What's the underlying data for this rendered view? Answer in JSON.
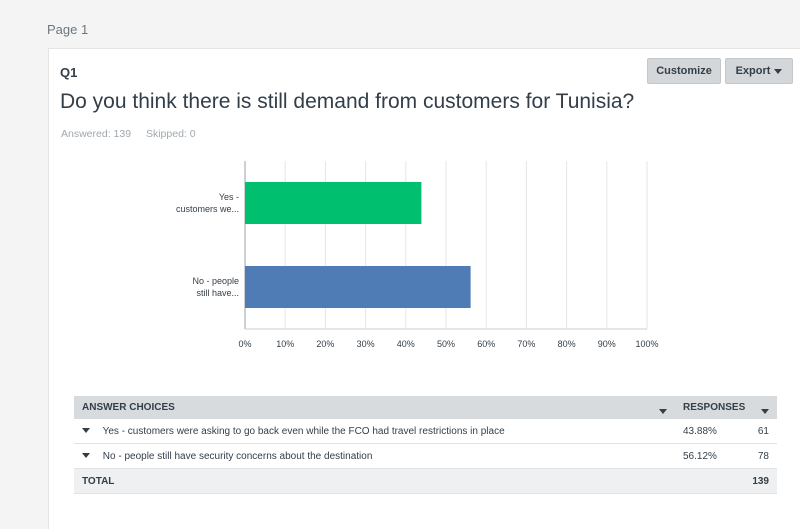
{
  "page": {
    "label": "Page 1"
  },
  "question": {
    "number": "Q1",
    "title": "Do you think there is still demand from customers for Tunisia?",
    "answered": "Answered: 139",
    "skipped": "Skipped: 0"
  },
  "toolbar": {
    "customize_label": "Customize",
    "export_label": "Export"
  },
  "chart_data": {
    "type": "bar",
    "orientation": "horizontal",
    "categories": [
      "Yes - customers we...",
      "No - people still have..."
    ],
    "category_lines": [
      [
        "Yes -",
        "customers we..."
      ],
      [
        "No - people",
        "still have..."
      ]
    ],
    "values": [
      43.88,
      56.12
    ],
    "colors": [
      "#00bf6f",
      "#507cb6"
    ],
    "xlim": [
      0,
      100
    ],
    "xticks": [
      "0%",
      "10%",
      "20%",
      "30%",
      "40%",
      "50%",
      "60%",
      "70%",
      "80%",
      "90%",
      "100%"
    ],
    "grid": true
  },
  "table": {
    "headers": {
      "choices": "ANSWER CHOICES",
      "responses": "RESPONSES"
    },
    "rows": [
      {
        "choice": "Yes - customers were asking to go back even while the FCO had travel restrictions in place",
        "percent": "43.88%",
        "count": "61"
      },
      {
        "choice": "No - people still have security concerns about the destination",
        "percent": "56.12%",
        "count": "78"
      }
    ],
    "total_label": "TOTAL",
    "total_value": "139"
  }
}
